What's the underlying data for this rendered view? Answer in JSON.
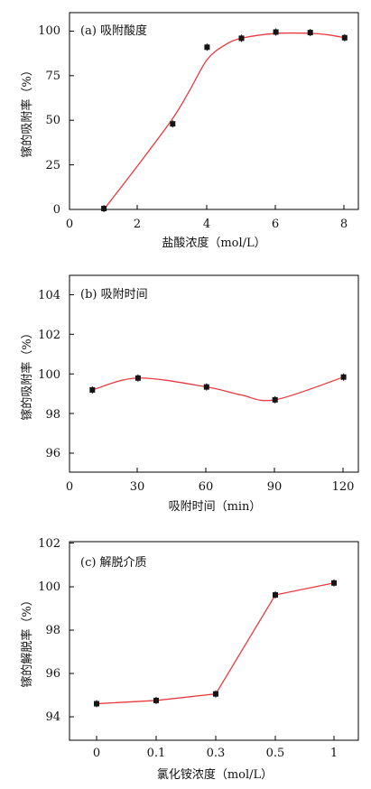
{
  "chart_data": [
    {
      "type": "line",
      "panel_label": "(a) 吸附酸度",
      "xlabel": "盐酸浓度（mol/L）",
      "ylabel": "镓的吸附率（%）",
      "xlim": [
        0,
        9
      ],
      "ylim": [
        0,
        110
      ],
      "xticks": [
        "0",
        "2",
        "4",
        "6",
        "8"
      ],
      "yticks": [
        "0",
        "25",
        "50",
        "75",
        "100"
      ],
      "series": [
        {
          "color": "#e8393f",
          "points": [
            {
              "x": 1,
              "y": 0.5
            },
            {
              "x": 3,
              "y": 48
            },
            {
              "x": 4,
              "y": 91
            },
            {
              "x": 5,
              "y": 96
            },
            {
              "x": 6,
              "y": 99.5
            },
            {
              "x": 7,
              "y": 99.2
            },
            {
              "x": 8,
              "y": 96.3
            }
          ],
          "curve": [
            {
              "x": 1.0,
              "y": 0
            },
            {
              "x": 2.0,
              "y": 25
            },
            {
              "x": 3.0,
              "y": 51
            },
            {
              "x": 3.5,
              "y": 67
            },
            {
              "x": 4.0,
              "y": 84
            },
            {
              "x": 4.5,
              "y": 92
            },
            {
              "x": 5.0,
              "y": 96
            },
            {
              "x": 6.0,
              "y": 98.7
            },
            {
              "x": 7.0,
              "y": 98.8
            },
            {
              "x": 7.5,
              "y": 98
            },
            {
              "x": 8.0,
              "y": 96.3
            }
          ]
        }
      ]
    },
    {
      "type": "line",
      "panel_label": "(b) 吸附时间",
      "xlabel": "吸附时间（min）",
      "ylabel": "镓的吸附率（%）",
      "xlim": [
        0,
        125
      ],
      "ylim": [
        94.5,
        105
      ],
      "xticks": [
        "0",
        "30",
        "60",
        "90",
        "120"
      ],
      "yticks": [
        "96",
        "98",
        "100",
        "102",
        "104"
      ],
      "series": [
        {
          "color": "#e8393f",
          "points": [
            {
              "x": 10,
              "y": 99.2
            },
            {
              "x": 30,
              "y": 99.8
            },
            {
              "x": 60,
              "y": 99.35
            },
            {
              "x": 90,
              "y": 98.7
            },
            {
              "x": 120,
              "y": 99.85
            }
          ],
          "curve": [
            {
              "x": 10,
              "y": 99.2
            },
            {
              "x": 30,
              "y": 99.8
            },
            {
              "x": 60,
              "y": 99.35
            },
            {
              "x": 75,
              "y": 98.95
            },
            {
              "x": 90,
              "y": 98.7
            },
            {
              "x": 120,
              "y": 99.85
            }
          ]
        }
      ]
    },
    {
      "type": "line",
      "panel_label": "(c) 解脱介质",
      "xlabel": "氯化铵浓度（mol/L）",
      "ylabel": "镓的解脱率（%）",
      "categories": [
        "0",
        "0.1",
        "0.3",
        "0.5",
        "1"
      ],
      "yticks": [
        "94",
        "96",
        "98",
        "100",
        "102"
      ],
      "ylim": [
        93,
        102
      ],
      "series": [
        {
          "color": "#e8393f",
          "values": [
            94.6,
            94.75,
            95.05,
            99.6,
            100.15
          ]
        }
      ]
    }
  ]
}
